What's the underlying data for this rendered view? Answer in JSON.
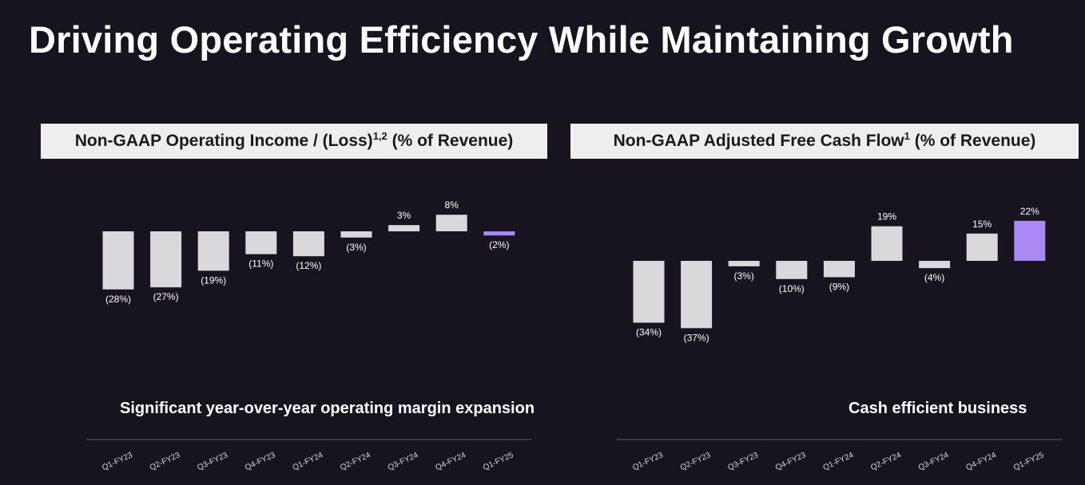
{
  "page": {
    "title": "Driving Operating Efficiency While Maintaining Growth"
  },
  "colors": {
    "background": "#18141f",
    "bar": "#d9d8db",
    "highlight": "#a98af5",
    "header_bg": "#efeeef",
    "axis": "#4a4652"
  },
  "panels": [
    {
      "header_main": "Non-GAAP Operating Income / (Loss)",
      "header_sup": "1,2",
      "header_tail": " (% of Revenue)",
      "caption": "Significant year-over-year operating margin expansion"
    },
    {
      "header_main": "Non-GAAP Adjusted Free Cash Flow",
      "header_sup": "1",
      "header_tail": " (% of Revenue)",
      "caption": "Cash efficient business"
    }
  ],
  "chart_data": [
    {
      "type": "bar",
      "title": "Non-GAAP Operating Income / (Loss)1,2 (% of Revenue)",
      "categories": [
        "Q1-FY23",
        "Q2-FY23",
        "Q3-FY23",
        "Q4-FY23",
        "Q1-FY24",
        "Q2-FY24",
        "Q3-FY24",
        "Q4-FY24",
        "Q1-FY25"
      ],
      "values": [
        -28,
        -27,
        -19,
        -11,
        -12,
        -3,
        3,
        8,
        -2
      ],
      "labels": [
        "(28%)",
        "(27%)",
        "(19%)",
        "(11%)",
        "(12%)",
        "(3%)",
        "3%",
        "8%",
        "(2%)"
      ],
      "highlight_index": 8,
      "unit": "%"
    },
    {
      "type": "bar",
      "title": "Non-GAAP Adjusted Free Cash Flow1 (% of Revenue)",
      "categories": [
        "Q1-FY23",
        "Q2-FY23",
        "Q3-FY23",
        "Q4-FY23",
        "Q1-FY24",
        "Q2-FY24",
        "Q3-FY24",
        "Q4-FY24",
        "Q1-FY25"
      ],
      "values": [
        -34,
        -37,
        -3,
        -10,
        -9,
        19,
        -4,
        15,
        22
      ],
      "labels": [
        "(34%)",
        "(37%)",
        "(3%)",
        "(10%)",
        "(9%)",
        "19%",
        "(4%)",
        "15%",
        "22%"
      ],
      "highlight_index": 8,
      "unit": "%"
    }
  ]
}
